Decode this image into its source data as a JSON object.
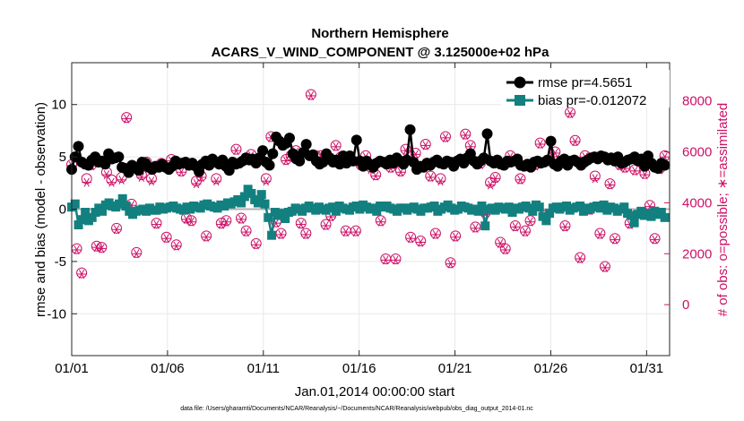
{
  "chart_data": {
    "type": "line",
    "title": "Northern Hemisphere",
    "subtitle": "ACARS_V_WIND_COMPONENT @ 3.125000e+02 hPa",
    "xlabel": "Jan.01,2014 00:00:00 start",
    "ylabel_left": "rmse and bias (model - observation)",
    "ylabel_right": "# of obs: o=possible; ∗=assimilated",
    "footer": "data file: /Users/gharamti/Documents/NCAR/Reanalysis/~/Documents/NCAR/Reanalysis/webpub/obs_diag_output_2014-01.nc",
    "x_ticks": [
      {
        "day": 1,
        "label": "01/01"
      },
      {
        "day": 6,
        "label": "01/06"
      },
      {
        "day": 11,
        "label": "01/11"
      },
      {
        "day": 16,
        "label": "01/16"
      },
      {
        "day": 21,
        "label": "01/21"
      },
      {
        "day": 26,
        "label": "01/26"
      },
      {
        "day": 31,
        "label": "01/31"
      }
    ],
    "xlim": [
      1,
      32.2
    ],
    "ylim_left": [
      -14,
      14
    ],
    "ylim_right": [
      -2000,
      9500
    ],
    "yticks_left": [
      {
        "v": 10,
        "label": "10"
      },
      {
        "v": 5,
        "label": "5"
      },
      {
        "v": 0,
        "label": "0"
      },
      {
        "v": -5,
        "label": "-5"
      },
      {
        "v": -10,
        "label": "-10"
      }
    ],
    "yticks_right": [
      {
        "v": 8000,
        "label": "8000"
      },
      {
        "v": 6000,
        "label": "6000"
      },
      {
        "v": 4000,
        "label": "4000"
      },
      {
        "v": 2000,
        "label": "2000"
      },
      {
        "v": 0,
        "label": "0"
      }
    ],
    "grid": true,
    "legend_position": "top-right",
    "series": [
      {
        "name": "rmse pr=4.5651",
        "axis": "left",
        "color": "#000000",
        "marker": "circle",
        "values": [
          3.8,
          5.0,
          6.0,
          4.5,
          4.3,
          4.2,
          4.7,
          5.0,
          4.5,
          4.6,
          4.3,
          5.3,
          4.8,
          4.9,
          5.0,
          4.0,
          3.9,
          3.5,
          4.2,
          4.0,
          3.7,
          4.5,
          4.4,
          4.0,
          3.8,
          4.1,
          4.0,
          4.3,
          4.0,
          3.8,
          4.1,
          4.6,
          4.3,
          4.4,
          4.5,
          4.2,
          4.4,
          4.1,
          3.6,
          4.3,
          4.6,
          4.2,
          4.8,
          4.5,
          4.3,
          4.7,
          4.1,
          3.7,
          4.5,
          4.3,
          4.4,
          4.6,
          4.9,
          4.7,
          4.8,
          4.4,
          4.9,
          5.6,
          4.5,
          4.2,
          5.3,
          6.9,
          6.5,
          6.1,
          6.3,
          6.8,
          5.3,
          4.8,
          4.6,
          5.4,
          6.2,
          5.1,
          5.2,
          4.6,
          4.3,
          4.5,
          5.3,
          4.9,
          4.5,
          4.7,
          4.3,
          5.1,
          4.4,
          5.1,
          4.6,
          6.6,
          4.6,
          4.1,
          4.6,
          4.3,
          4.0,
          4.4,
          4.6,
          4.5,
          4.3,
          4.7,
          4.4,
          4.9,
          4.6,
          4.3,
          4.7,
          7.6,
          4.5,
          3.8,
          4.1,
          4.0,
          4.4,
          4.2,
          4.5,
          4.7,
          4.4,
          4.3,
          4.6,
          4.5,
          4.1,
          4.6,
          4.8,
          4.4,
          4.9,
          5.3,
          4.6,
          4.3,
          4.6,
          4.9,
          7.2,
          4.6,
          4.4,
          4.7,
          4.3,
          4.2,
          4.6,
          4.5,
          4.6,
          4.8,
          4.2,
          4.1,
          4.3,
          4.0,
          4.5,
          4.6,
          4.4,
          4.5,
          4.7,
          6.5,
          4.3,
          4.1,
          4.6,
          4.8,
          4.2,
          4.6,
          4.7,
          4.5,
          4.2,
          4.5,
          4.7,
          4.9,
          5.0,
          4.8,
          5.1,
          5.0,
          4.7,
          4.9,
          4.6,
          5.0,
          4.4,
          4.5,
          4.7,
          4.8,
          5.0,
          4.6,
          4.8,
          4.1,
          5.1,
          4.4,
          4.0,
          3.9,
          4.4,
          4.2
        ]
      },
      {
        "name": "bias pr=-0.012072",
        "axis": "left",
        "color": "#138080",
        "marker": "square",
        "values": [
          0.2,
          0.5,
          -1.5,
          -1.0,
          -0.3,
          -1.1,
          -0.8,
          -0.3,
          0.1,
          -0.2,
          0.4,
          0.6,
          0.3,
          0.2,
          0.5,
          1.0,
          0.3,
          -0.2,
          -0.5,
          -0.2,
          -0.1,
          0.0,
          -0.2,
          0.1,
          -0.1,
          -0.1,
          0.2,
          0.0,
          0.1,
          0.2,
          0.3,
          0.1,
          0.0,
          -0.1,
          0.2,
          0.0,
          0.3,
          0.2,
          0.1,
          0.4,
          0.5,
          0.3,
          0.2,
          0.1,
          0.4,
          0.3,
          0.6,
          0.5,
          0.7,
          0.9,
          0.6,
          1.2,
          1.9,
          1.5,
          0.9,
          0.6,
          1.4,
          0.5,
          -0.8,
          -2.5,
          -0.3,
          -0.6,
          -0.4,
          -0.9,
          -0.3,
          -0.2,
          0.1,
          0.0,
          -0.2,
          0.1,
          0.3,
          0.1,
          -0.1,
          0.2,
          0.0,
          -0.1,
          0.1,
          0.2,
          -0.2,
          0.3,
          0.1,
          0.0,
          -0.1,
          0.2,
          0.3,
          0.0,
          0.4,
          0.2,
          0.0,
          0.1,
          -0.2,
          0.3,
          0.2,
          0.3,
          0.1,
          0.0,
          -0.2,
          0.1,
          0.1,
          -0.1,
          0.1,
          0.2,
          0.0,
          -0.2,
          0.1,
          0.1,
          0.2,
          0.3,
          -0.2,
          0.0,
          0.2,
          0.4,
          0.1,
          -0.1,
          0.0,
          0.3,
          0.2,
          0.1,
          -0.1,
          0.0,
          -0.2,
          0.3,
          -1.6,
          0.0,
          0.1,
          -0.1,
          0.2,
          0.1,
          0.0,
          0.2,
          -0.3,
          0.1,
          0.0,
          0.2,
          0.3,
          0.1,
          -0.2,
          0.4,
          0.2,
          -0.7,
          -1.1,
          -0.4,
          0.1,
          0.2,
          0.0,
          0.2,
          0.3,
          -0.1,
          0.1,
          0.2,
          0.3,
          -0.2,
          0.1,
          0.0,
          0.2,
          0.3,
          0.1,
          0.4,
          -0.1,
          0.2,
          0.1,
          -0.2,
          0.0,
          0.2,
          -0.4,
          -0.6,
          -1.3,
          -0.5,
          -0.2,
          -0.6,
          -0.4,
          -0.7,
          -0.2,
          -0.5,
          -0.3,
          -0.8
        ]
      },
      {
        "name": "obs possible",
        "axis": "right",
        "color": "#cc1166",
        "marker": "open-circle",
        "values": [
          5500,
          2200,
          1250,
          4950,
          5500,
          2300,
          2250,
          5200,
          4900,
          3000,
          5000,
          7350,
          3950,
          2050,
          5100,
          5600,
          4950,
          3200,
          5550,
          2650,
          5700,
          2350,
          5250,
          3400,
          3300,
          4850,
          5050,
          2700,
          5600,
          4950,
          3200,
          3300,
          5500,
          6100,
          3400,
          2900,
          5900,
          2400,
          5700,
          4950,
          6600,
          3250,
          2800,
          5700,
          5850,
          6050,
          3200,
          2800,
          8250,
          5850,
          5850,
          3150,
          3500,
          6250,
          5800,
          2900,
          5700,
          2900,
          5500,
          5850,
          5400,
          5100,
          3300,
          1800,
          5400,
          1800,
          5250,
          6100,
          2650,
          5950,
          2500,
          6300,
          5050,
          2800,
          4950,
          6600,
          1650,
          2700,
          5650,
          6700,
          6250,
          3050,
          5550,
          3600,
          4800,
          5000,
          2450,
          2200,
          5850,
          3100,
          4950,
          2900,
          3300,
          5500,
          6350,
          3500,
          5650,
          6000,
          7950,
          3100,
          7550,
          6450,
          1850,
          5850,
          3750,
          5050,
          2800,
          1500,
          4750,
          2600,
          5500,
          5400,
          3200,
          5300,
          5700,
          5150,
          3900,
          2600,
          5350,
          5850
        ]
      },
      {
        "name": "obs assimilated",
        "axis": "right",
        "color": "#cc1166",
        "marker": "asterisk",
        "values": [
          5450,
          2150,
          1200,
          4800,
          5450,
          2250,
          2200,
          5100,
          4800,
          2950,
          4900,
          7300,
          3900,
          2000,
          5000,
          5550,
          4850,
          3150,
          5500,
          2600,
          5650,
          2300,
          5200,
          3350,
          3250,
          4750,
          5000,
          2650,
          5550,
          4850,
          3150,
          3250,
          5450,
          6050,
          3350,
          2850,
          5850,
          2350,
          5650,
          4850,
          6550,
          3200,
          2750,
          5650,
          5800,
          6000,
          3150,
          2750,
          8200,
          5800,
          5800,
          3100,
          3450,
          6200,
          5750,
          2850,
          5650,
          2850,
          5450,
          5800,
          5300,
          5050,
          3250,
          1750,
          5350,
          1750,
          5200,
          6050,
          2600,
          5900,
          2450,
          6250,
          5000,
          2750,
          4850,
          6550,
          1600,
          2650,
          5600,
          6650,
          6200,
          3000,
          5500,
          3550,
          4700,
          4950,
          2400,
          2150,
          5800,
          3050,
          4900,
          2850,
          3250,
          5450,
          6300,
          3450,
          5600,
          5950,
          7900,
          3050,
          7500,
          6400,
          1800,
          5800,
          3700,
          4950,
          2750,
          1450,
          4700,
          2550,
          5450,
          5350,
          3150,
          5250,
          5650,
          5100,
          3850,
          2550,
          5300,
          5800
        ]
      }
    ]
  }
}
